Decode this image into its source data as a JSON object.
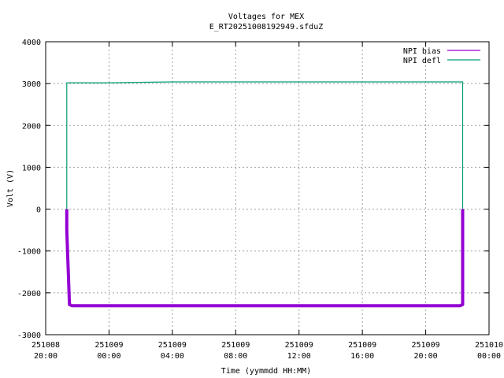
{
  "chart_data": {
    "type": "line",
    "title": "Voltages for MEX",
    "subtitle": "E_RT20251008192949.sfduZ",
    "xlabel": "Time (yymmdd HH:MM)",
    "ylabel": "Volt (V)",
    "ylim": [
      -3000,
      4000
    ],
    "yticks": [
      -3000,
      -2000,
      -1000,
      0,
      1000,
      2000,
      3000,
      4000
    ],
    "xlim": [
      "2025-10-08 20:00",
      "2025-10-10 00:00"
    ],
    "xticks": [
      {
        "x": "2025-10-08 20:00",
        "date": "251008",
        "time": "20:00"
      },
      {
        "x": "2025-10-09 00:00",
        "date": "251009",
        "time": "00:00"
      },
      {
        "x": "2025-10-09 04:00",
        "date": "251009",
        "time": "04:00"
      },
      {
        "x": "2025-10-09 08:00",
        "date": "251009",
        "time": "08:00"
      },
      {
        "x": "2025-10-09 12:00",
        "date": "251009",
        "time": "12:00"
      },
      {
        "x": "2025-10-09 16:00",
        "date": "251009",
        "time": "16:00"
      },
      {
        "x": "2025-10-09 20:00",
        "date": "251009",
        "time": "20:00"
      },
      {
        "x": "2025-10-10 00:00",
        "date": "251010",
        "time": "00:00"
      }
    ],
    "grid": true,
    "legend_position": "top-right",
    "series": [
      {
        "name": "NPI bias",
        "color": "#9400d3",
        "x": [
          "2025-10-08 21:20",
          "2025-10-08 21:20",
          "2025-10-08 21:30",
          "2025-10-08 21:40",
          "2025-10-09 02:00",
          "2025-10-09 06:00",
          "2025-10-09 10:00",
          "2025-10-09 14:00",
          "2025-10-09 18:00",
          "2025-10-09 22:10",
          "2025-10-09 22:20",
          "2025-10-09 22:20"
        ],
        "y": [
          0,
          -500,
          -2280,
          -2310,
          -2310,
          -2310,
          -2310,
          -2310,
          -2310,
          -2310,
          -2280,
          0
        ]
      },
      {
        "name": "NPI defl",
        "color": "#009e73",
        "x": [
          "2025-10-08 21:20",
          "2025-10-08 21:20",
          "2025-10-09 00:00",
          "2025-10-09 04:00",
          "2025-10-09 08:00",
          "2025-10-09 12:00",
          "2025-10-09 16:00",
          "2025-10-09 20:00",
          "2025-10-09 22:20",
          "2025-10-09 22:20"
        ],
        "y": [
          0,
          3020,
          3020,
          3040,
          3040,
          3040,
          3040,
          3040,
          3040,
          0
        ]
      }
    ]
  }
}
